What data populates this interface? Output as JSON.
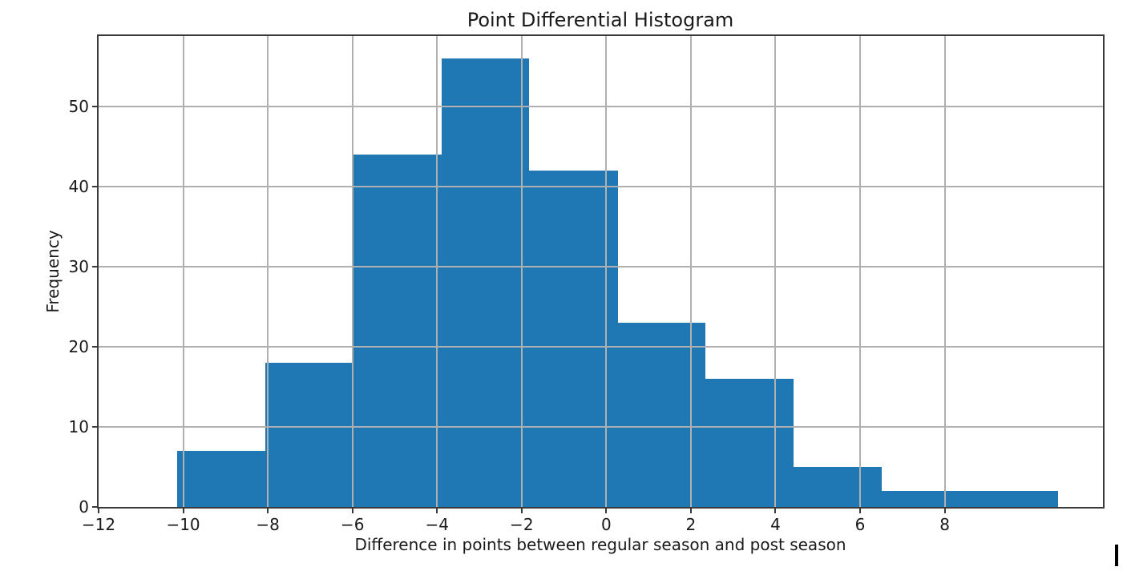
{
  "chart_data": {
    "type": "bar",
    "subtype": "histogram",
    "title": "Point Differential Histogram",
    "xlabel": "Difference in points between regular season and post season",
    "ylabel": "Frequency",
    "bin_edges": [
      -10.14,
      -8.06,
      -5.98,
      -3.9,
      -1.82,
      0.27,
      2.35,
      4.43,
      6.51,
      8.59,
      10.68
    ],
    "values": [
      7,
      18,
      44,
      56,
      42,
      23,
      16,
      5,
      2,
      2
    ],
    "xticks": [
      -12,
      -10,
      -8,
      -6,
      -4,
      -2,
      0,
      2,
      4,
      6,
      8
    ],
    "yticks": [
      0,
      10,
      20,
      30,
      40,
      50
    ],
    "xlim": [
      -12,
      11.74
    ],
    "ylim": [
      0,
      58.8
    ],
    "grid": true,
    "grid_above_bars": true,
    "legend": "none",
    "colors": {
      "bar": "#1f77b4",
      "grid": "#b0b0b0",
      "spine": "#3a3a3a",
      "text": "#1a1a1a",
      "background": "#ffffff"
    }
  },
  "artifacts": {
    "text_cursor_visible": true
  }
}
